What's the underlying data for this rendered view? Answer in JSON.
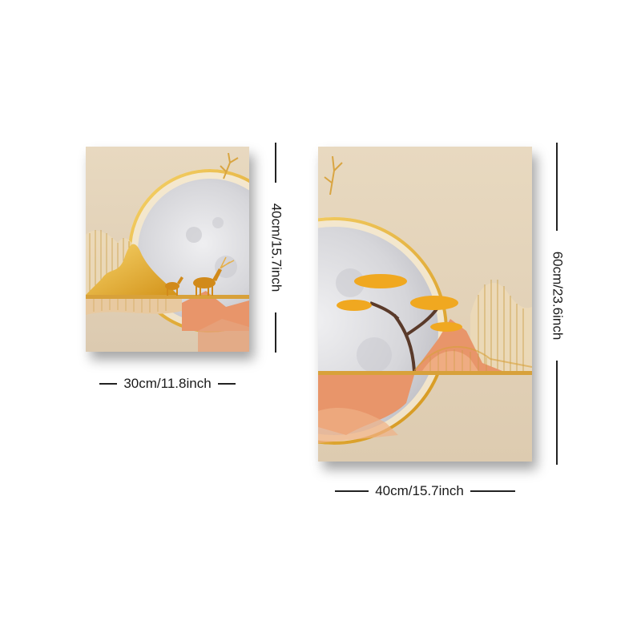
{
  "panels": [
    {
      "name": "small-canvas",
      "width_label": "30cm/11.8inch",
      "height_label": "40cm/15.7inch"
    },
    {
      "name": "large-canvas",
      "width_label": "40cm/15.7inch",
      "height_label": "60cm/23.6inch"
    }
  ],
  "colors": {
    "background": "#ffffff",
    "canvas_beige": "#e6d8c0",
    "moon": "#d9d9dc",
    "gold": "#e6a21c",
    "orange_terracotta": "#e8956a",
    "dimension_line": "#222222"
  }
}
